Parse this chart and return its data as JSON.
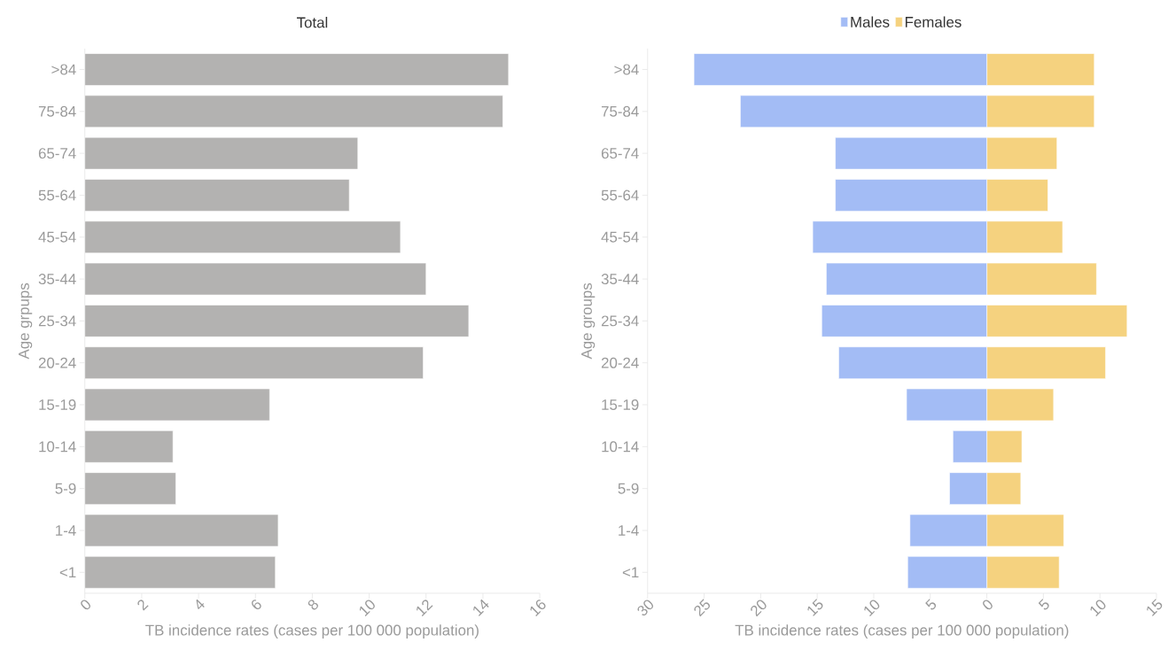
{
  "chart_data": [
    {
      "type": "bar",
      "orientation": "horizontal",
      "title": "Total",
      "xlabel": "TB incidence rates (cases per 100 000 population)",
      "ylabel": "Age grpups",
      "categories": [
        ">84",
        "75-84",
        "65-74",
        "55-64",
        "45-54",
        "35-44",
        "25-34",
        "20-24",
        "15-19",
        "10-14",
        "5-9",
        "1-4",
        "<1"
      ],
      "values": [
        14.9,
        14.7,
        9.6,
        9.3,
        11.1,
        12.0,
        13.5,
        11.9,
        6.5,
        3.1,
        3.2,
        6.8,
        6.7
      ],
      "color": "#b3b2b1",
      "xlim": [
        0,
        16
      ],
      "xticks": [
        0,
        2,
        4,
        6,
        8,
        10,
        12,
        14,
        16
      ]
    },
    {
      "type": "bar",
      "orientation": "horizontal",
      "xlabel": "TB incidence rates (cases per 100 000 population)",
      "ylabel": "Age groups",
      "legend": "top",
      "stacked": true,
      "categories": [
        ">84",
        "75-84",
        "65-74",
        "55-64",
        "45-54",
        "35-44",
        "25-34",
        "20-24",
        "15-19",
        "10-14",
        "5-9",
        "1-4",
        "<1"
      ],
      "series": [
        {
          "name": "Males",
          "color": "#a3bcf5",
          "values": [
            -25.9,
            -21.8,
            -13.4,
            -13.4,
            -15.4,
            -14.2,
            -14.6,
            -13.1,
            -7.1,
            -3.0,
            -3.3,
            -6.8,
            -7.0
          ]
        },
        {
          "name": "Females",
          "color": "#f5d27f",
          "values": [
            9.5,
            9.5,
            6.2,
            5.4,
            6.7,
            9.7,
            12.4,
            10.5,
            5.9,
            3.1,
            3.0,
            6.8,
            6.4
          ]
        }
      ],
      "xlim": [
        -30,
        15
      ],
      "xticks": [
        {
          "value": -30,
          "label": "30"
        },
        {
          "value": -25,
          "label": "25"
        },
        {
          "value": -20,
          "label": "20"
        },
        {
          "value": -15,
          "label": "15"
        },
        {
          "value": -10,
          "label": "10"
        },
        {
          "value": -5,
          "label": "5"
        },
        0,
        5,
        10,
        15
      ]
    }
  ]
}
